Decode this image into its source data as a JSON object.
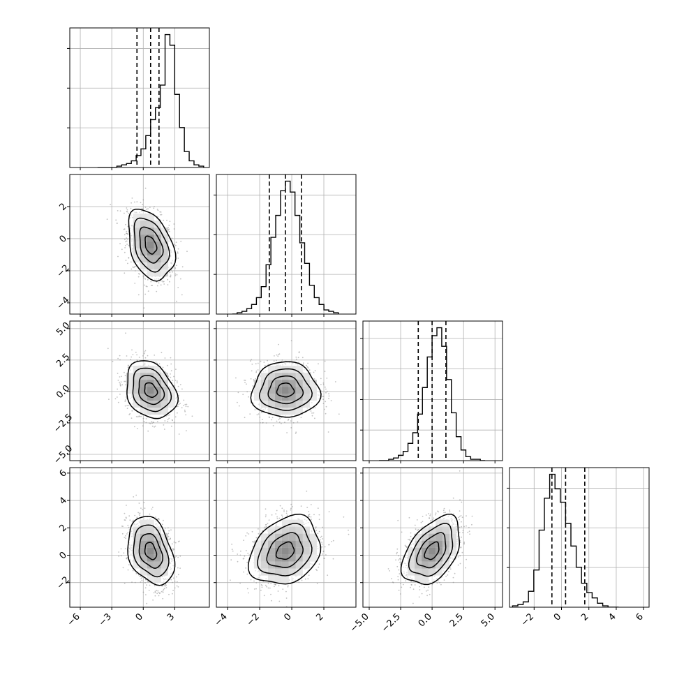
{
  "chart_data": {
    "type": "corner",
    "grid": true,
    "parameters": [
      {
        "index": 0,
        "range": [
          -7.0,
          6.3
        ],
        "ticks": [
          -6,
          -3,
          0,
          3
        ],
        "tick_labels": [
          "−6",
          "−3",
          "0",
          "3"
        ],
        "quantiles": [
          -0.6,
          0.7,
          1.5
        ],
        "histogram": [
          0,
          0,
          0,
          0,
          1,
          2,
          3,
          5,
          9,
          14,
          24,
          36,
          45,
          62,
          100,
          92,
          55,
          30,
          12,
          5,
          2,
          1
        ]
      },
      {
        "index": 1,
        "range": [
          -4.7,
          4.0
        ],
        "ticks": [
          -4,
          -2,
          0,
          2
        ],
        "tick_labels": [
          "−4",
          "−2",
          "0",
          "2"
        ],
        "quantiles": [
          -1.4,
          -0.4,
          0.6
        ],
        "histogram": [
          0,
          1,
          2,
          4,
          7,
          12,
          20,
          36,
          56,
          72,
          90,
          97,
          89,
          72,
          52,
          37,
          21,
          12,
          7,
          3,
          2,
          1
        ]
      },
      {
        "index": 2,
        "range": [
          -5.5,
          5.6
        ],
        "ticks": [
          -5.0,
          -2.5,
          0.0,
          2.5,
          5.0
        ],
        "tick_labels": [
          "−5.0",
          "−2.5",
          "0.0",
          "2.5",
          "5.0"
        ],
        "quantiles": [
          -1.1,
          0.0,
          1.1
        ],
        "histogram": [
          0,
          0,
          1,
          2,
          4,
          7,
          13,
          21,
          35,
          55,
          78,
          94,
          100,
          86,
          61,
          36,
          18,
          8,
          3,
          1,
          1,
          0
        ]
      },
      {
        "index": 3,
        "range": [
          -3.8,
          6.4
        ],
        "ticks": [
          -2,
          0,
          2,
          4,
          6
        ],
        "tick_labels": [
          "−2",
          "0",
          "2",
          "4",
          "6"
        ],
        "quantiles": [
          -0.7,
          0.3,
          1.7
        ],
        "histogram": [
          1,
          2,
          4,
          12,
          28,
          58,
          82,
          100,
          89,
          79,
          63,
          46,
          30,
          18,
          11,
          7,
          3,
          1,
          0,
          0
        ]
      }
    ],
    "histogram_y_ticks": [
      [
        1,
        2,
        3
      ],
      [
        1,
        2,
        3
      ],
      [
        1,
        2,
        3,
        4
      ],
      [
        1,
        2,
        3
      ]
    ],
    "correlations": [
      {
        "row": 1,
        "col": 0,
        "cx": 0.7,
        "cy": -0.4,
        "sx": 1.1,
        "sy": 1.1,
        "rho": -0.35
      },
      {
        "row": 2,
        "col": 0,
        "cx": 0.7,
        "cy": 0.1,
        "sx": 1.2,
        "sy": 1.15,
        "rho": -0.25
      },
      {
        "row": 2,
        "col": 1,
        "cx": -0.4,
        "cy": 0.1,
        "sx": 1.05,
        "sy": 1.1,
        "rho": 0.0
      },
      {
        "row": 3,
        "col": 0,
        "cx": 0.7,
        "cy": 0.3,
        "sx": 1.1,
        "sy": 1.25,
        "rho": -0.3
      },
      {
        "row": 3,
        "col": 1,
        "cx": -0.4,
        "cy": 0.3,
        "sx": 1.1,
        "sy": 1.25,
        "rho": 0.25
      },
      {
        "row": 3,
        "col": 2,
        "cx": 0.0,
        "cy": 0.3,
        "sx": 1.15,
        "sy": 1.25,
        "rho": 0.45
      }
    ]
  }
}
